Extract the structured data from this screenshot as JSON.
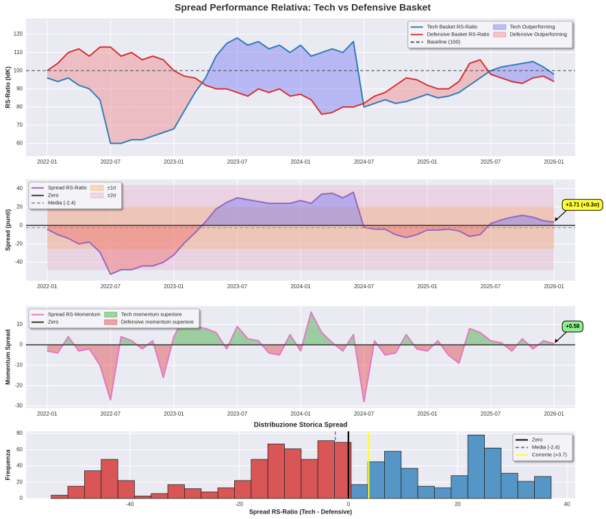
{
  "title": "Spread Performance Relativa: Tech vs Defensive Basket",
  "chart_data": [
    {
      "type": "line",
      "ylabel": "RS-Ratio (IdK)",
      "x": [
        "2022-01",
        "2022-02",
        "2022-03",
        "2022-04",
        "2022-05",
        "2022-06",
        "2022-07",
        "2022-08",
        "2022-09",
        "2022-10",
        "2022-11",
        "2022-12",
        "2023-01",
        "2023-02",
        "2023-03",
        "2023-04",
        "2023-05",
        "2023-06",
        "2023-07",
        "2023-08",
        "2023-09",
        "2023-10",
        "2023-11",
        "2023-12",
        "2024-01",
        "2024-02",
        "2024-03",
        "2024-04",
        "2024-05",
        "2024-06",
        "2024-07",
        "2024-08",
        "2024-09",
        "2024-10",
        "2024-11",
        "2024-12",
        "2025-01",
        "2025-02",
        "2025-03",
        "2025-04",
        "2025-05",
        "2025-06",
        "2025-07",
        "2025-08",
        "2025-09",
        "2025-10",
        "2025-11",
        "2025-12",
        "2026-01"
      ],
      "xlim": [
        "2021-11",
        "2026-03"
      ],
      "xticks": [
        "2022-01",
        "2022-07",
        "2023-01",
        "2023-07",
        "2024-01",
        "2024-07",
        "2025-01",
        "2025-07",
        "2026-01"
      ],
      "ylim": [
        53,
        128.7
      ],
      "yticks": [
        60,
        70,
        80,
        90,
        100,
        110,
        120
      ],
      "grid": true,
      "legend": "upper right",
      "series": [
        {
          "name": "Tech Basket RS-Ratio",
          "color": "#2f7bb6",
          "values": [
            96,
            94,
            96,
            92,
            90,
            84,
            60,
            60,
            62,
            62,
            64,
            66,
            68,
            78,
            88,
            96,
            108,
            115,
            118,
            114,
            116,
            112,
            114,
            110,
            114,
            108,
            110,
            112,
            110,
            116,
            80,
            82,
            84,
            82,
            83,
            85,
            87,
            85,
            86,
            88,
            92,
            96,
            100,
            102,
            103,
            104,
            105,
            102,
            98
          ]
        },
        {
          "name": "Defensive Basket RS-Ratio",
          "color": "#d62f2f",
          "values": [
            100,
            104,
            110,
            112,
            108,
            113,
            113,
            108,
            110,
            106,
            108,
            106,
            100,
            97,
            96,
            92,
            90,
            90,
            88,
            86,
            90,
            88,
            90,
            86,
            87,
            84,
            76,
            77,
            80,
            80,
            82,
            86,
            88,
            92,
            96,
            95,
            92,
            90,
            90,
            94,
            104,
            106,
            98,
            96,
            94,
            93,
            96,
            97,
            94
          ]
        }
      ],
      "hlines": [
        {
          "name": "Baseline (100)",
          "value": 100,
          "color": "#555566",
          "style": "dashed"
        }
      ],
      "fills": [
        {
          "name": "Tech Outperforming",
          "color": "#7b7bf5",
          "where": "above"
        },
        {
          "name": "Defensive Outperforming",
          "color": "#f08a8a",
          "where": "below"
        }
      ]
    },
    {
      "type": "line",
      "ylabel": "Spread (punti)",
      "x": [
        "2022-01",
        "2022-02",
        "2022-03",
        "2022-04",
        "2022-05",
        "2022-06",
        "2022-07",
        "2022-08",
        "2022-09",
        "2022-10",
        "2022-11",
        "2022-12",
        "2023-01",
        "2023-02",
        "2023-03",
        "2023-04",
        "2023-05",
        "2023-06",
        "2023-07",
        "2023-08",
        "2023-09",
        "2023-10",
        "2023-11",
        "2023-12",
        "2024-01",
        "2024-02",
        "2024-03",
        "2024-04",
        "2024-05",
        "2024-06",
        "2024-07",
        "2024-08",
        "2024-09",
        "2024-10",
        "2024-11",
        "2024-12",
        "2025-01",
        "2025-02",
        "2025-03",
        "2025-04",
        "2025-05",
        "2025-06",
        "2025-07",
        "2025-08",
        "2025-09",
        "2025-10",
        "2025-11",
        "2025-12",
        "2026-01"
      ],
      "xlim": [
        "2021-11",
        "2026-03"
      ],
      "xticks": [
        "2022-01",
        "2022-07",
        "2023-01",
        "2023-07",
        "2024-01",
        "2024-07",
        "2025-01",
        "2025-07",
        "2026-01"
      ],
      "ylim": [
        -60,
        50
      ],
      "yticks": [
        -40,
        -20,
        0,
        20,
        40
      ],
      "grid": true,
      "legend": "upper left",
      "series": [
        {
          "name": "Spread RS-Ratio",
          "color": "#9467bd",
          "values": [
            -4,
            -10,
            -14,
            -20,
            -18,
            -29,
            -53,
            -48,
            -48,
            -44,
            -44,
            -40,
            -32,
            -19,
            -8,
            4,
            18,
            25,
            30,
            28,
            26,
            24,
            24,
            24,
            27,
            24,
            34,
            35,
            30,
            36,
            -2,
            -4,
            -4,
            -10,
            -13,
            -10,
            -5,
            -5,
            -4,
            -6,
            -12,
            -10,
            2,
            6,
            9,
            11,
            9,
            5,
            3.71
          ]
        }
      ],
      "hlines": [
        {
          "name": "Zero",
          "value": 0,
          "color": "#333333",
          "style": "solid"
        },
        {
          "name": "Media (-2.4)",
          "value": -2.4,
          "color": "#9a9a9a",
          "style": "dashed"
        }
      ],
      "bands": [
        {
          "name": "±1σ",
          "range": [
            -25.4,
            20.6
          ],
          "color": "#f9a55a"
        },
        {
          "name": "±2σ",
          "range": [
            -48.4,
            43.6
          ],
          "color": "#e8a0c0"
        }
      ],
      "fills": [
        {
          "color": "#7b7bf5",
          "where": "above"
        },
        {
          "color": "#f07070",
          "where": "below"
        }
      ],
      "annotation": {
        "text": "+3.71 (+0.3σ)",
        "color": "#ffff33"
      }
    },
    {
      "type": "line",
      "ylabel": "Momentum Spread",
      "x": [
        "2022-01",
        "2022-02",
        "2022-03",
        "2022-04",
        "2022-05",
        "2022-06",
        "2022-07",
        "2022-08",
        "2022-09",
        "2022-10",
        "2022-11",
        "2022-12",
        "2023-01",
        "2023-02",
        "2023-03",
        "2023-04",
        "2023-05",
        "2023-06",
        "2023-07",
        "2023-08",
        "2023-09",
        "2023-10",
        "2023-11",
        "2023-12",
        "2024-01",
        "2024-02",
        "2024-03",
        "2024-04",
        "2024-05",
        "2024-06",
        "2024-07",
        "2024-08",
        "2024-09",
        "2024-10",
        "2024-11",
        "2024-12",
        "2025-01",
        "2025-02",
        "2025-03",
        "2025-04",
        "2025-05",
        "2025-06",
        "2025-07",
        "2025-08",
        "2025-09",
        "2025-10",
        "2025-11",
        "2025-12",
        "2026-01"
      ],
      "xlim": [
        "2021-11",
        "2026-03"
      ],
      "xticks": [
        "2022-01",
        "2022-07",
        "2023-01",
        "2023-07",
        "2024-01",
        "2024-07",
        "2025-01",
        "2025-07",
        "2026-01"
      ],
      "ylim": [
        -31,
        19
      ],
      "yticks": [
        -30,
        -20,
        -10,
        0,
        10
      ],
      "grid": true,
      "legend": "upper left",
      "series": [
        {
          "name": "Spread RS-Momentum",
          "color": "#e377c2",
          "values": [
            -3,
            -4,
            4,
            -3,
            -2,
            -10,
            -27,
            4,
            2,
            -2,
            2,
            -16,
            4,
            14,
            9,
            8,
            6,
            -2,
            9,
            3,
            2,
            -4,
            -5,
            5,
            -3,
            16,
            6,
            1,
            -3,
            5,
            -28,
            2,
            -5,
            -4,
            5,
            -2,
            -3,
            2,
            -5,
            -9,
            8,
            6,
            2,
            1,
            -3,
            3,
            -2,
            2,
            0.58
          ]
        }
      ],
      "hlines": [
        {
          "name": "Zero",
          "value": 0,
          "color": "#333333",
          "style": "solid"
        }
      ],
      "fills": [
        {
          "name": "Tech momentum superiore",
          "color": "#3caa3c",
          "where": "above"
        },
        {
          "name": "Defensive momentum superiore",
          "color": "#e04848",
          "where": "below"
        }
      ],
      "annotation": {
        "text": "+0.58",
        "color": "#90ee90"
      }
    },
    {
      "type": "histogram",
      "title": "Distribuzione Storica Spread",
      "xlabel": "Spread RS-Ratio (Tech - Defensive)",
      "ylabel": "Frequenza",
      "bins": [
        -54.4,
        -51.35,
        -48.3,
        -45.25,
        -42.2,
        -39.15,
        -36.1,
        -33.05,
        -30,
        -26.95,
        -23.9,
        -20.85,
        -17.8,
        -14.75,
        -11.7,
        -8.65,
        -5.6,
        -2.55,
        0.5,
        3.55,
        6.6,
        9.65,
        12.7,
        15.75,
        18.8,
        21.85,
        24.9,
        27.95,
        31,
        34.05,
        37.1
      ],
      "counts": [
        4,
        15,
        34,
        48,
        22,
        3,
        6,
        17,
        12,
        8,
        13,
        22,
        48,
        67,
        61,
        48,
        71,
        69,
        17,
        45,
        58,
        37,
        15,
        13,
        28,
        78,
        62,
        31,
        21,
        27
      ],
      "negative_color": "#d95656",
      "positive_color": "#5596c6",
      "xlim": [
        -59,
        41.5
      ],
      "xticks": [
        -40,
        -20,
        0,
        20,
        40
      ],
      "ylim": [
        0,
        82.5
      ],
      "yticks": [
        0,
        20,
        40,
        60,
        80
      ],
      "grid": true,
      "legend": "upper right",
      "vlines": [
        {
          "name": "Zero",
          "value": 0,
          "color": "#000000",
          "style": "solid"
        },
        {
          "name": "Media (-2.4)",
          "value": -2.4,
          "color": "#777788",
          "style": "dashed"
        },
        {
          "name": "Corrente (+3.7)",
          "value": 3.7,
          "color": "#ffff22",
          "style": "solid"
        }
      ]
    }
  ]
}
